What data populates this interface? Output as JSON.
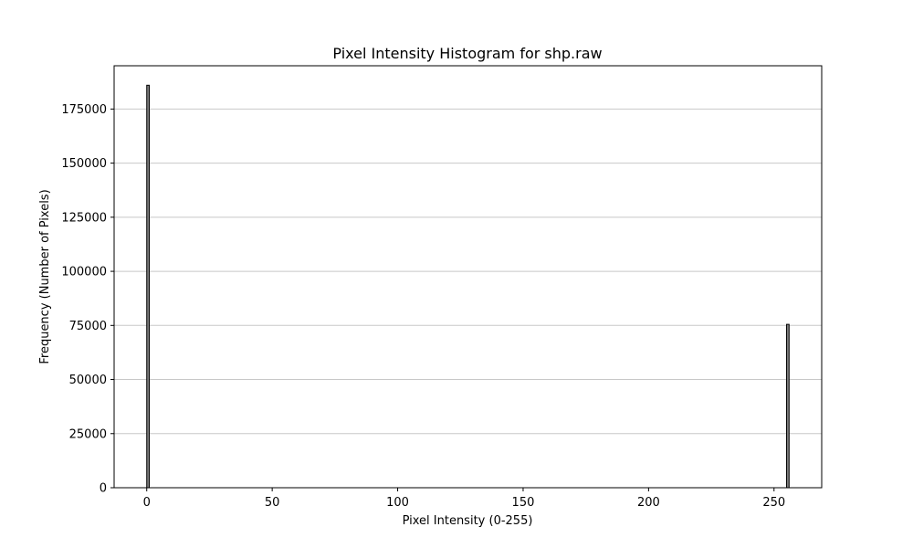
{
  "chart_data": {
    "type": "bar",
    "title": "Pixel Intensity Histogram for shp.raw",
    "xlabel": "Pixel Intensity (0-255)",
    "ylabel": "Frequency (Number of Pixels)",
    "xlim": [
      -13,
      269
    ],
    "ylim": [
      0,
      195000
    ],
    "x_ticks": [
      0,
      50,
      100,
      150,
      200,
      250
    ],
    "y_ticks": [
      0,
      25000,
      50000,
      75000,
      100000,
      125000,
      150000,
      175000
    ],
    "grid": "horizontal",
    "bins": {
      "start": 0,
      "count": 256,
      "width": 1
    },
    "nonzero_bins": [
      {
        "x": 0,
        "value": 186000
      },
      {
        "x": 255,
        "value": 75500
      }
    ],
    "colors": {
      "bar_fill": "#808080",
      "bar_edge": "#000000",
      "grid": "#c8c8c8"
    }
  }
}
